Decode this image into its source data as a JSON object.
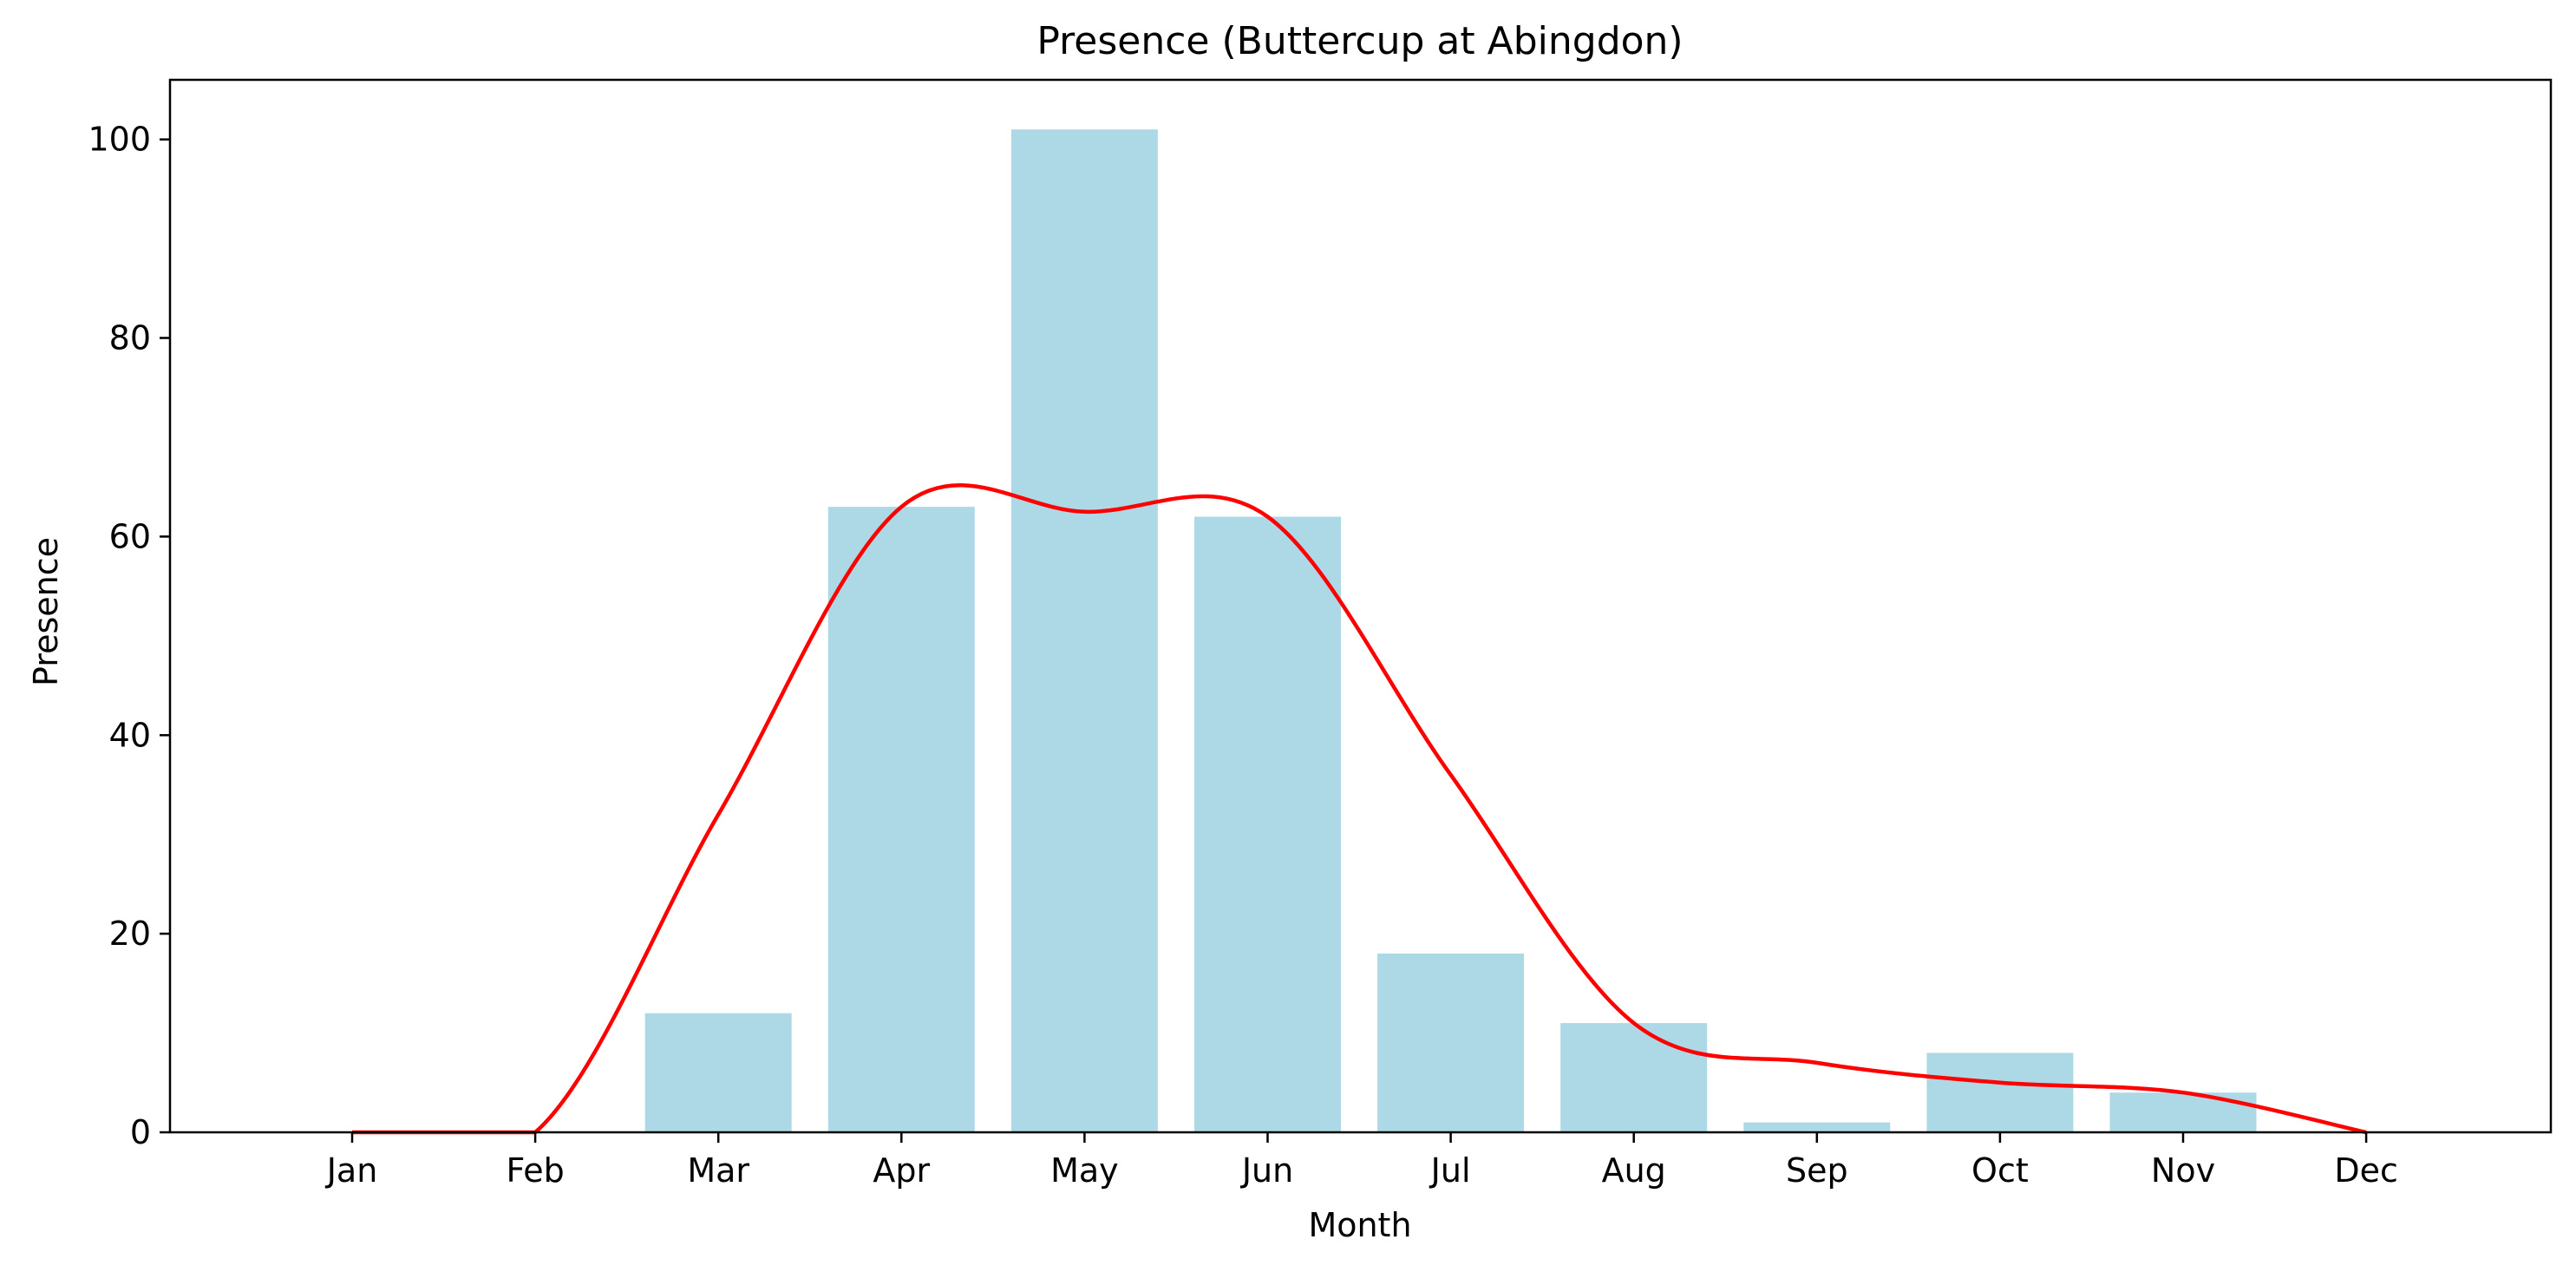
{
  "chart_data": {
    "type": "bar",
    "title": "Presence (Buttercup at Abingdon)",
    "xlabel": "Month",
    "ylabel": "Presence",
    "categories": [
      "Jan",
      "Feb",
      "Mar",
      "Apr",
      "May",
      "Jun",
      "Jul",
      "Aug",
      "Sep",
      "Oct",
      "Nov",
      "Dec"
    ],
    "values": [
      0,
      0,
      12,
      63,
      101,
      62,
      18,
      11,
      1,
      8,
      4,
      0
    ],
    "bar_color": "#add8e6",
    "line": {
      "color": "#ff0000",
      "description": "smoothed trend curve",
      "points": [
        {
          "x": "Jan",
          "y": 0
        },
        {
          "x": "Feb",
          "y": 0
        },
        {
          "x": "Mar",
          "y": 32
        },
        {
          "x": "Apr",
          "y": 63
        },
        {
          "x": "May",
          "y": 62.5
        },
        {
          "x": "Jun",
          "y": 62
        },
        {
          "x": "Jul",
          "y": 36
        },
        {
          "x": "Aug",
          "y": 11
        },
        {
          "x": "Sep",
          "y": 7
        },
        {
          "x": "Oct",
          "y": 5
        },
        {
          "x": "Nov",
          "y": 4
        },
        {
          "x": "Dec",
          "y": 0
        }
      ]
    },
    "ylim": [
      0,
      106
    ],
    "yticks": [
      0,
      20,
      40,
      60,
      80,
      100
    ],
    "grid": false,
    "legend": "none"
  }
}
